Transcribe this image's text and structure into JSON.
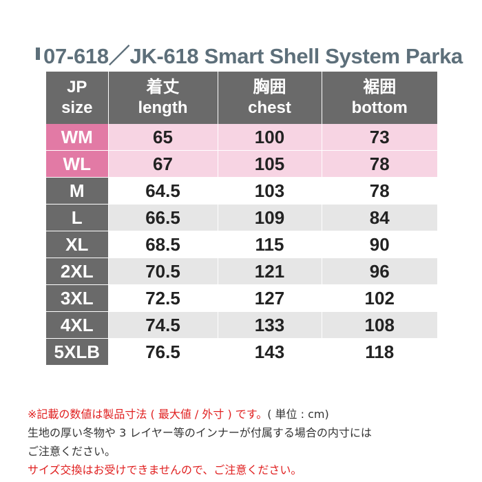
{
  "title": "07-618／JK-618 Smart Shell System Parka",
  "columns": [
    {
      "jp": "JP",
      "en": "size"
    },
    {
      "jp": "着丈",
      "en": "length"
    },
    {
      "jp": "胸囲",
      "en": "chest"
    },
    {
      "jp": "裾囲",
      "en": "bottom"
    }
  ],
  "rows": [
    {
      "size": "WM",
      "length": "65",
      "chest": "100",
      "bottom": "73",
      "style": "pink"
    },
    {
      "size": "WL",
      "length": "67",
      "chest": "105",
      "bottom": "78",
      "style": "pink"
    },
    {
      "size": "M",
      "length": "64.5",
      "chest": "103",
      "bottom": "78",
      "style": "white"
    },
    {
      "size": "L",
      "length": "66.5",
      "chest": "109",
      "bottom": "84",
      "style": "gray"
    },
    {
      "size": "XL",
      "length": "68.5",
      "chest": "115",
      "bottom": "90",
      "style": "white"
    },
    {
      "size": "2XL",
      "length": "70.5",
      "chest": "121",
      "bottom": "96",
      "style": "gray"
    },
    {
      "size": "3XL",
      "length": "72.5",
      "chest": "127",
      "bottom": "102",
      "style": "white"
    },
    {
      "size": "4XL",
      "length": "74.5",
      "chest": "133",
      "bottom": "108",
      "style": "gray"
    },
    {
      "size": "5XLB",
      "length": "76.5",
      "chest": "143",
      "bottom": "118",
      "style": "white"
    }
  ],
  "notes": {
    "line1_red": "※記載の数値は製品寸法 ( 最大値 / 外寸 ) です。",
    "line1_black": "( 単位 : cm)",
    "line2": "生地の厚い冬物や 3 レイヤー等のインナーが付属する場合の内寸には",
    "line3": "ご注意ください。",
    "line4": "サイズ交換はお受けできませんので、ご注意ください。"
  },
  "colors": {
    "title": "#5d6f7a",
    "header_bg": "#6a6a6a",
    "pink_size": "#e27aa5",
    "pink_row": "#f7d4e3",
    "gray_row": "#e6e6e6",
    "red_text": "#e02020"
  }
}
